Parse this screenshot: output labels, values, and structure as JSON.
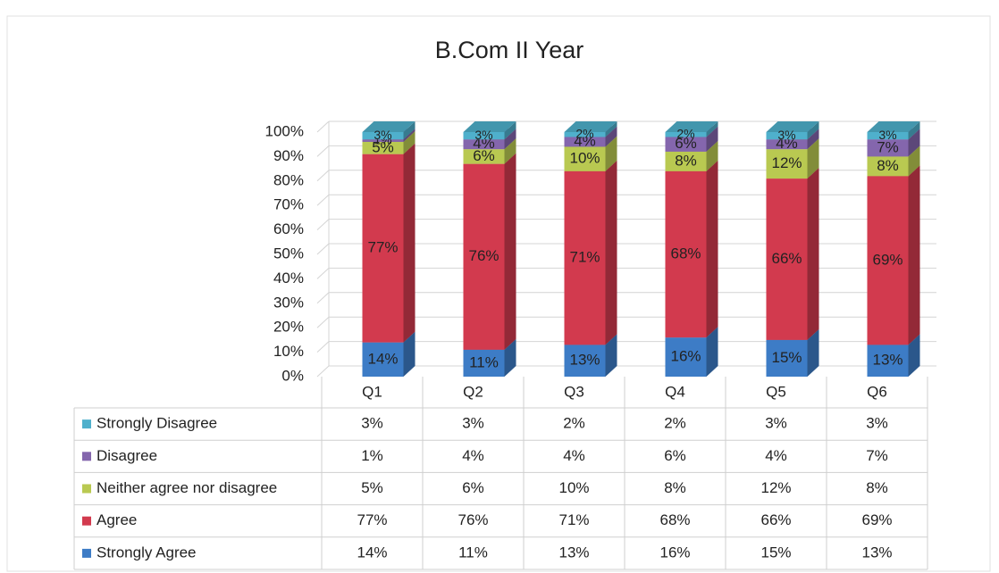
{
  "chart_data": {
    "type": "bar",
    "stacked": true,
    "title": "B.Com II Year",
    "categories": [
      "Q1",
      "Q2",
      "Q3",
      "Q4",
      "Q5",
      "Q6"
    ],
    "series": [
      {
        "name": "Strongly Agree",
        "color": "#3d7cc6",
        "values": [
          14,
          11,
          13,
          16,
          15,
          13
        ],
        "value_labels": [
          "14%",
          "11%",
          "13%",
          "16%",
          "15%",
          "13%"
        ]
      },
      {
        "name": "Agree",
        "color": "#d23a4e",
        "values": [
          77,
          76,
          71,
          68,
          66,
          69
        ],
        "value_labels": [
          "77%",
          "76%",
          "71%",
          "68%",
          "66%",
          "69%"
        ]
      },
      {
        "name": "Neither agree nor disagree",
        "color": "#b9c951",
        "values": [
          5,
          6,
          10,
          8,
          12,
          8
        ],
        "value_labels": [
          "5%",
          "6%",
          "10%",
          "8%",
          "12%",
          "8%"
        ]
      },
      {
        "name": "Disagree",
        "color": "#8466ad",
        "values": [
          1,
          4,
          4,
          6,
          4,
          7
        ],
        "value_labels": [
          "1%",
          "4%",
          "4%",
          "6%",
          "4%",
          "7%"
        ]
      },
      {
        "name": "Strongly Disagree",
        "color": "#4fb0cc",
        "values": [
          3,
          3,
          2,
          2,
          3,
          3
        ],
        "value_labels": [
          "3%",
          "3%",
          "2%",
          "2%",
          "3%",
          "3%"
        ]
      }
    ],
    "ylim": [
      0,
      100
    ],
    "yticks": [
      {
        "value": 0,
        "label": "0%"
      },
      {
        "value": 10,
        "label": "10%"
      },
      {
        "value": 20,
        "label": "20%"
      },
      {
        "value": 30,
        "label": "30%"
      },
      {
        "value": 40,
        "label": "40%"
      },
      {
        "value": 50,
        "label": "50%"
      },
      {
        "value": 60,
        "label": "60%"
      },
      {
        "value": 70,
        "label": "70%"
      },
      {
        "value": 80,
        "label": "80%"
      },
      {
        "value": 90,
        "label": "90%"
      },
      {
        "value": 100,
        "label": "100%"
      }
    ],
    "grid": true
  }
}
